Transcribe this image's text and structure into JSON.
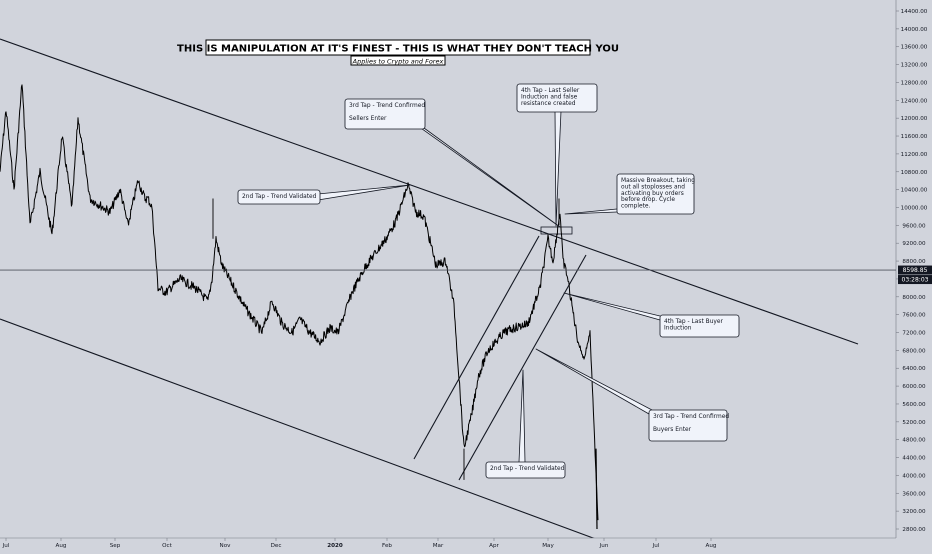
{
  "chart_data": {
    "type": "line",
    "title": "THIS IS MANIPULATION AT IT'S FINEST - THIS IS WHAT THEY DON'T TEACH YOU",
    "subtitle": "Applies to Crypto and Forex",
    "price_tag": "8598.85",
    "time_tag": "03:28:03",
    "current_price": 8598.85,
    "ylim": [
      2600,
      14600
    ],
    "y_ticks": [
      "14400.00",
      "14000.00",
      "13600.00",
      "13200.00",
      "12800.00",
      "12400.00",
      "12000.00",
      "11600.00",
      "11200.00",
      "10800.00",
      "10400.00",
      "10000.00",
      "9600.00",
      "9200.00",
      "8800.00",
      "8400.00",
      "8000.00",
      "7600.00",
      "7200.00",
      "6800.00",
      "6400.00",
      "6000.00",
      "5600.00",
      "5200.00",
      "4800.00",
      "4400.00",
      "4000.00",
      "3600.00",
      "3200.00",
      "2800.00"
    ],
    "x_ticks": [
      "Jul",
      "Aug",
      "Sep",
      "Oct",
      "Nov",
      "Dec",
      "2020",
      "Feb",
      "Mar",
      "Apr",
      "May",
      "Jun",
      "Jul",
      "Aug"
    ],
    "series": [
      {
        "x": [
          "Jul",
          "Jul",
          "Jul",
          "Jul",
          "Jul",
          "Aug",
          "Aug",
          "Aug",
          "Aug",
          "Aug",
          "Aug",
          "Aug",
          "Aug",
          "Sep",
          "Sep",
          "Sep",
          "Sep",
          "Sep",
          "Sep",
          "Oct",
          "Oct",
          "Oct",
          "Oct",
          "Oct",
          "Nov",
          "Nov",
          "Nov",
          "Nov",
          "Nov",
          "Dec",
          "Dec",
          "Dec",
          "Dec",
          "Dec",
          "Dec",
          "2020",
          "2020",
          "2020",
          "2020",
          "2020",
          "Feb",
          "Feb",
          "Feb",
          "Feb",
          "Feb",
          "Mar",
          "Mar",
          "Mar",
          "Mar",
          "Mar",
          "Apr",
          "Apr",
          "Apr",
          "Apr",
          "May",
          "May",
          "May",
          "May",
          "May",
          "May",
          "May",
          "May",
          "May",
          "May",
          "May"
        ],
        "values": [
          10800,
          12200,
          10400,
          12800,
          9600,
          10800,
          9400,
          11600,
          10000,
          12000,
          10200,
          9900,
          10400,
          9600,
          10600,
          10200,
          10200,
          10000,
          8200,
          8100,
          8400,
          8200,
          7900,
          8400,
          9300,
          8700,
          7800,
          7200,
          7900,
          7400,
          7200,
          7500,
          7200,
          7000,
          7300,
          7200,
          8100,
          8700,
          9000,
          9300,
          9700,
          10500,
          9900,
          9800,
          8700,
          8800,
          7800,
          4600,
          5400,
          6200,
          6800,
          7200,
          7300,
          7400,
          8200,
          9300,
          8800,
          9900,
          8800,
          8500,
          7800,
          7000,
          6600,
          7200,
          3000
        ]
      }
    ],
    "trendlines": [
      {
        "label": "Upper Descending Channel"
      },
      {
        "label": "Lower Descending Channel"
      },
      {
        "label": "Ascending Channel Upper"
      },
      {
        "label": "Ascending Channel Lower"
      }
    ],
    "annotations": [
      {
        "name": "annotation-2nd-tap-validated-top",
        "lines": [
          "2nd Tap - Trend Validated"
        ]
      },
      {
        "name": "annotation-3rd-tap-sellers",
        "lines": [
          "3rd Tap - Trend Confirmed",
          "",
          "Sellers Enter"
        ]
      },
      {
        "name": "annotation-4th-tap-seller",
        "lines": [
          "4th Tap - Last Seller",
          "Induction and false",
          "resistance created"
        ]
      },
      {
        "name": "annotation-massive-breakout",
        "lines": [
          "Massive Breakout, taking",
          "out all stoplosses and",
          "activating buy orders",
          "before drop. Cycle",
          "complete."
        ]
      },
      {
        "name": "annotation-4th-tap-buyer",
        "lines": [
          "4th Tap - Last Buyer",
          "Induction"
        ]
      },
      {
        "name": "annotation-3rd-tap-buyers",
        "lines": [
          "3rd Tap - Trend Confirmed",
          "",
          "Buyers Enter"
        ]
      },
      {
        "name": "annotation-2nd-tap-validated-bottom",
        "lines": [
          "2nd Tap - Trend Validated"
        ]
      }
    ]
  }
}
